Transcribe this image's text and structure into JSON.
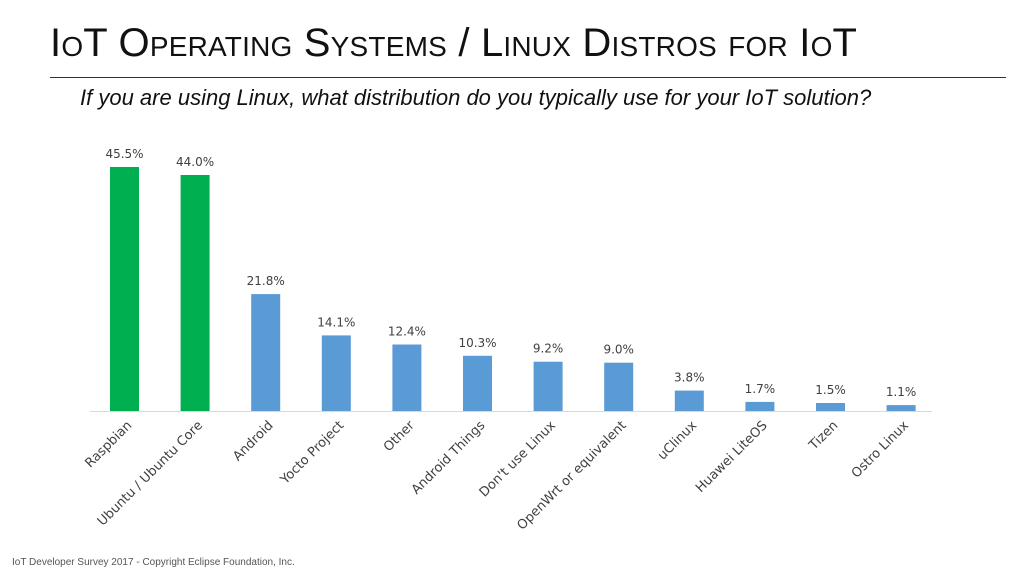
{
  "slide": {
    "title": "IoT Operating Systems / Linux Distros for IoT",
    "subtitle": "If you are using Linux, what distribution do you typically use for your IoT solution?",
    "footer": "IoT Developer Survey 2017 - Copyright Eclipse Foundation, Inc."
  },
  "colors": {
    "highlight": "#00B050",
    "bar": "#5B9BD5",
    "axis": "#D9D9D9",
    "label": "#404040"
  },
  "chart_data": {
    "type": "bar",
    "title": "",
    "xlabel": "",
    "ylabel": "",
    "ylim": [
      0,
      45.5
    ],
    "grid": false,
    "legend": "none",
    "categories": [
      "Raspbian",
      "Ubuntu / Ubuntu Core",
      "Android",
      "Yocto Project",
      "Other",
      "Android Things",
      "Don't use Linux",
      "OpenWrt or equivalent",
      "uClinux",
      "Huawei LiteOS",
      "Tizen",
      "Ostro Linux"
    ],
    "values": [
      45.5,
      44.0,
      21.8,
      14.1,
      12.4,
      10.3,
      9.2,
      9.0,
      3.8,
      1.7,
      1.5,
      1.1
    ],
    "value_labels": [
      "45.5%",
      "44.0%",
      "21.8%",
      "14.1%",
      "12.4%",
      "10.3%",
      "9.2%",
      "9.0%",
      "3.8%",
      "1.7%",
      "1.5%",
      "1.1%"
    ],
    "highlighted": [
      true,
      true,
      false,
      false,
      false,
      false,
      false,
      false,
      false,
      false,
      false,
      false
    ]
  }
}
